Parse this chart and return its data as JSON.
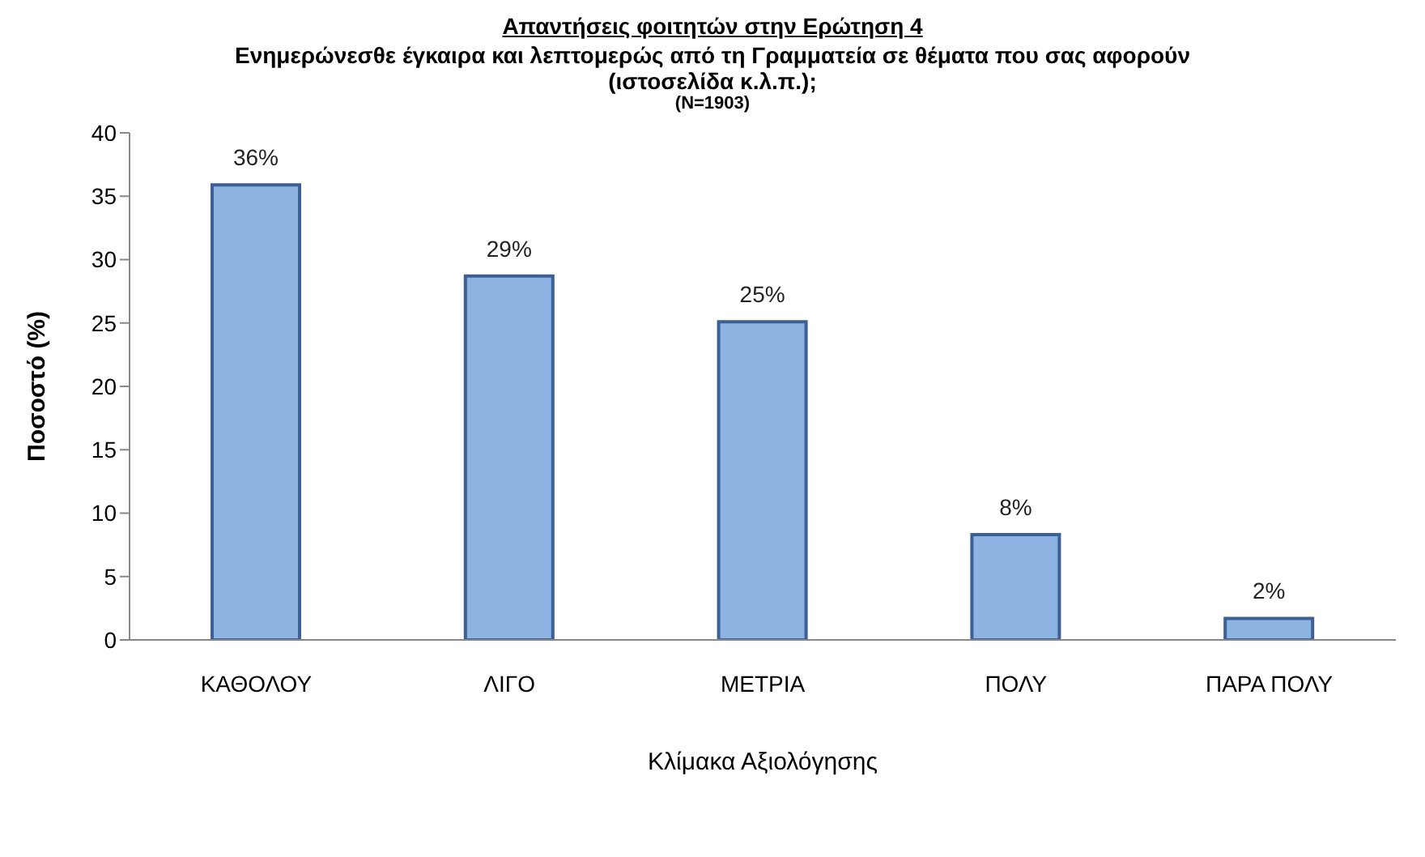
{
  "chart_data": {
    "type": "bar",
    "title": "Απαντήσεις φοιτητών στην Ερώτηση 4",
    "subtitle": "Ενημερώνεσθε έγκαιρα και λεπτομερώς από τη Γραμματεία σε θέματα που σας αφορούν (ιστοσελίδα κ.λ.π.);",
    "annotations": [
      "(N=1903)"
    ],
    "categories": [
      "ΚΑΘΟΛΟΥ",
      "ΛΙΓΟ",
      "ΜΕΤΡΙΑ",
      "ΠΟΛΥ",
      "ΠΑΡΑ ΠΟΛΥ"
    ],
    "values": [
      35.9,
      28.7,
      25.1,
      8.3,
      1.7
    ],
    "value_labels": [
      "36%",
      "29%",
      "25%",
      "8%",
      "2%"
    ],
    "color": "#8db3e2",
    "xlabel": "Κλίμακα Αξιολόγησης",
    "ylabel": "Ποσοστό (%)",
    "ylim": [
      0,
      40
    ],
    "yticks": [
      0,
      5,
      10,
      15,
      20,
      25,
      30,
      35,
      40
    ],
    "grid": false,
    "legend": false
  }
}
